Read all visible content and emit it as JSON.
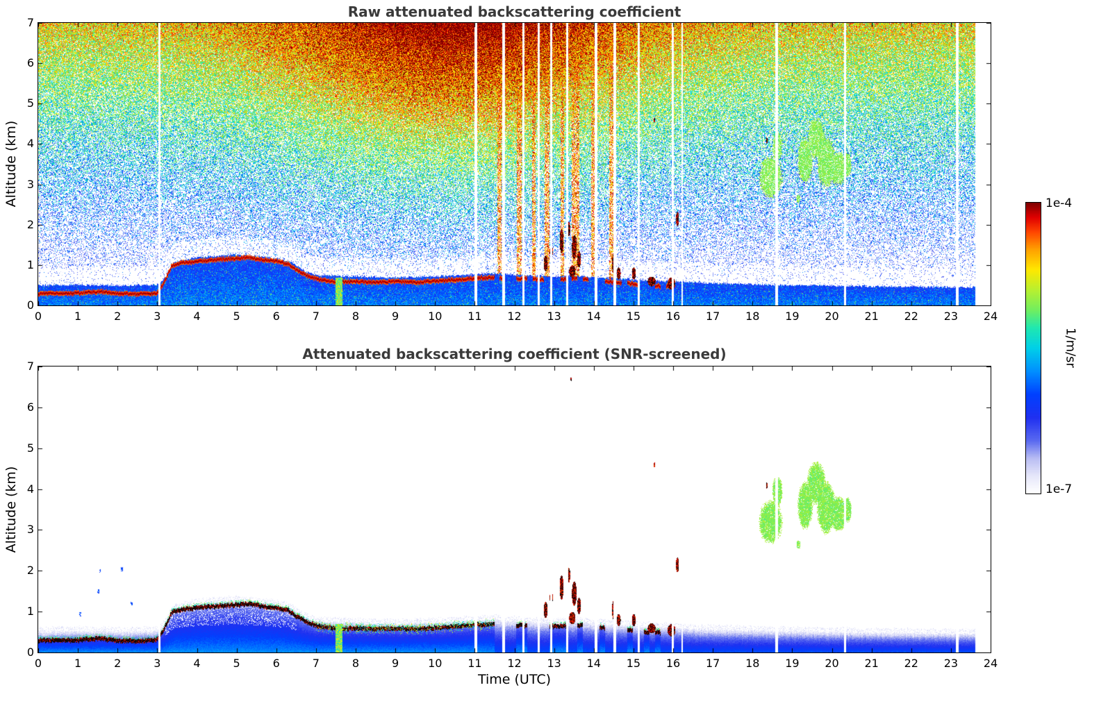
{
  "page": {
    "background": "#ffffff"
  },
  "colorbar": {
    "max_label": "1e-4",
    "min_label": "1e-7",
    "unit_label": "1/m/sr",
    "stops": [
      [
        0,
        "#ffffff"
      ],
      [
        0.06,
        "#e6e7fa"
      ],
      [
        0.12,
        "#b9bdf3"
      ],
      [
        0.18,
        "#5a6af0"
      ],
      [
        0.26,
        "#2030f0"
      ],
      [
        0.34,
        "#0040ff"
      ],
      [
        0.42,
        "#0090ff"
      ],
      [
        0.5,
        "#00d0e8"
      ],
      [
        0.57,
        "#20e8b0"
      ],
      [
        0.63,
        "#70ee60"
      ],
      [
        0.7,
        "#b8f030"
      ],
      [
        0.77,
        "#ffe800"
      ],
      [
        0.84,
        "#ffa000"
      ],
      [
        0.9,
        "#ff4500"
      ],
      [
        0.95,
        "#e00000"
      ],
      [
        1,
        "#7f0000"
      ]
    ]
  },
  "chart_data": [
    {
      "type": "heatmap",
      "panel": "top",
      "title": "Raw attenuated backscattering coefficient",
      "xlabel": "",
      "ylabel": "Altitude (km)",
      "xlim": [
        0,
        24
      ],
      "ylim": [
        0,
        7
      ],
      "xticks": [
        0,
        1,
        2,
        3,
        4,
        5,
        6,
        7,
        8,
        9,
        10,
        11,
        12,
        13,
        14,
        15,
        16,
        17,
        18,
        19,
        20,
        21,
        22,
        23,
        24
      ],
      "yticks": [
        0,
        1,
        2,
        3,
        4,
        5,
        6,
        7
      ],
      "grid": false,
      "legend": "colorbar-right",
      "colorscale": {
        "min_label": "1e-7",
        "max_label": "1e-4",
        "unit": "1/m/sr",
        "scale": "log"
      },
      "seed": 11,
      "noise": {
        "base": 0.14,
        "gain": 0.8,
        "day_peak_utc": 10.5,
        "day_sigma": 3.2,
        "day_base": 0.78,
        "day_amp": 0.38
      },
      "features": {
        "data_end_utc": 23.6,
        "line_solid_until_utc": 11.5,
        "line_intermittent_until_utc": 16,
        "boundary_layer_top_km": [
          [
            0,
            0.3
          ],
          [
            1,
            0.31
          ],
          [
            1.5,
            0.35
          ],
          [
            2,
            0.3
          ],
          [
            2.6,
            0.29
          ],
          [
            3.0,
            0.32
          ],
          [
            3.15,
            0.55
          ],
          [
            3.35,
            0.98
          ],
          [
            3.6,
            1.06
          ],
          [
            4.0,
            1.1
          ],
          [
            4.5,
            1.14
          ],
          [
            5.0,
            1.17
          ],
          [
            5.3,
            1.2
          ],
          [
            5.7,
            1.13
          ],
          [
            6.0,
            1.1
          ],
          [
            6.3,
            1.03
          ],
          [
            6.55,
            0.86
          ],
          [
            6.8,
            0.73
          ],
          [
            7.1,
            0.64
          ],
          [
            7.5,
            0.59
          ],
          [
            8.0,
            0.6
          ],
          [
            8.5,
            0.58
          ],
          [
            9.0,
            0.6
          ],
          [
            9.5,
            0.58
          ],
          [
            10.0,
            0.61
          ],
          [
            10.5,
            0.64
          ],
          [
            11.0,
            0.68
          ],
          [
            11.5,
            0.7
          ],
          [
            12.0,
            0.67
          ],
          [
            12.5,
            0.66
          ],
          [
            13.0,
            0.64
          ],
          [
            13.5,
            0.68
          ],
          [
            14.0,
            0.64
          ],
          [
            14.5,
            0.58
          ],
          [
            15.0,
            0.54
          ],
          [
            15.5,
            0.5
          ],
          [
            16.0,
            0.46
          ],
          [
            17.0,
            0.42
          ],
          [
            18.0,
            0.4
          ],
          [
            19.0,
            0.37
          ],
          [
            20.0,
            0.35
          ],
          [
            21.0,
            0.32
          ],
          [
            22.0,
            0.3
          ],
          [
            23.0,
            0.28
          ],
          [
            24.0,
            0.27
          ]
        ],
        "aerosol_layer_top_km": [
          [
            0,
            0.5
          ],
          [
            1,
            0.52
          ],
          [
            2,
            0.5
          ],
          [
            3,
            0.52
          ],
          [
            3.2,
            0.7
          ],
          [
            3.4,
            1.08
          ],
          [
            4,
            1.2
          ],
          [
            5,
            1.27
          ],
          [
            5.5,
            1.22
          ],
          [
            6,
            1.18
          ],
          [
            6.4,
            1.06
          ],
          [
            6.7,
            0.86
          ],
          [
            7,
            0.76
          ],
          [
            8,
            0.72
          ],
          [
            9,
            0.7
          ],
          [
            10,
            0.73
          ],
          [
            11,
            0.78
          ],
          [
            11.5,
            0.8
          ],
          [
            12,
            0.77
          ],
          [
            12.5,
            0.74
          ],
          [
            13,
            0.72
          ],
          [
            13.5,
            0.75
          ],
          [
            14,
            0.7
          ],
          [
            14.5,
            0.68
          ],
          [
            15,
            0.65
          ],
          [
            15.5,
            0.62
          ],
          [
            16,
            0.6
          ],
          [
            17,
            0.56
          ],
          [
            18,
            0.53
          ],
          [
            19,
            0.51
          ],
          [
            20,
            0.5
          ],
          [
            21,
            0.48
          ],
          [
            22,
            0.47
          ],
          [
            23,
            0.46
          ],
          [
            24,
            0.45
          ]
        ],
        "data_gaps_utc": [
          [
            3.05,
            0.03
          ],
          [
            11.02,
            0.03
          ],
          [
            11.72,
            0.03
          ],
          [
            12.22,
            0.03
          ],
          [
            12.6,
            0.025
          ],
          [
            12.92,
            0.03
          ],
          [
            13.32,
            0.03
          ],
          [
            14.05,
            0.03
          ],
          [
            14.52,
            0.03
          ],
          [
            15.12,
            0.03
          ],
          [
            15.98,
            0.03
          ],
          [
            16.22,
            0.025
          ],
          [
            18.6,
            0.03
          ],
          [
            20.32,
            0.03
          ],
          [
            23.15,
            0.03
          ]
        ],
        "rain_streaks_utc": [
          [
            11.62,
            0.05
          ],
          [
            12.12,
            0.06
          ],
          [
            12.48,
            0.05
          ],
          [
            12.82,
            0.06
          ],
          [
            13.2,
            0.05
          ],
          [
            13.53,
            0.09
          ],
          [
            13.98,
            0.05
          ],
          [
            14.44,
            0.06
          ]
        ],
        "precip_streak": {
          "t": 7.57,
          "half_width": 0.09,
          "top_km": 0.7
        },
        "cloud_blobs": [
          [
            18.45,
            3.2,
            0.28,
            0.5
          ],
          [
            18.62,
            3.95,
            0.12,
            0.35
          ],
          [
            19.32,
            3.6,
            0.18,
            0.55
          ],
          [
            19.6,
            4.15,
            0.22,
            0.5
          ],
          [
            19.85,
            3.55,
            0.22,
            0.6
          ],
          [
            20.15,
            3.4,
            0.22,
            0.4
          ],
          [
            20.38,
            3.5,
            0.1,
            0.3
          ],
          [
            19.15,
            2.65,
            0.05,
            0.1
          ]
        ],
        "feature_blobs": [
          [
            12.78,
            1.05,
            0.05,
            0.2
          ],
          [
            12.92,
            1.35,
            0.04,
            0.15
          ],
          [
            13.18,
            1.6,
            0.05,
            0.3
          ],
          [
            13.36,
            1.9,
            0.04,
            0.18
          ],
          [
            13.5,
            1.45,
            0.06,
            0.3
          ],
          [
            13.62,
            1.15,
            0.05,
            0.2
          ],
          [
            13.45,
            0.85,
            0.08,
            0.15
          ],
          [
            14.5,
            1.05,
            0.05,
            0.25
          ],
          [
            14.62,
            0.8,
            0.05,
            0.15
          ],
          [
            15.0,
            0.8,
            0.05,
            0.15
          ],
          [
            15.45,
            0.6,
            0.1,
            0.12
          ],
          [
            15.95,
            0.55,
            0.1,
            0.15
          ],
          [
            16.1,
            2.15,
            0.04,
            0.18
          ],
          [
            15.52,
            4.6,
            0.02,
            0.06
          ],
          [
            13.42,
            6.7,
            0.015,
            0.05
          ],
          [
            18.35,
            4.1,
            0.02,
            0.08
          ]
        ],
        "bottom_specks": [
          [
            1.05,
            0.95
          ],
          [
            1.5,
            1.5
          ],
          [
            1.55,
            2.0
          ],
          [
            2.1,
            2.05
          ],
          [
            2.35,
            1.2
          ],
          [
            3.05,
            1.4
          ]
        ]
      }
    },
    {
      "type": "heatmap",
      "panel": "bottom",
      "title": "Attenuated backscattering coefficient (SNR-screened)",
      "xlabel": "Time (UTC)",
      "ylabel": "Altitude (km)",
      "xlim": [
        0,
        24
      ],
      "ylim": [
        0,
        7
      ],
      "xticks": [
        0,
        1,
        2,
        3,
        4,
        5,
        6,
        7,
        8,
        9,
        10,
        11,
        12,
        13,
        14,
        15,
        16,
        17,
        18,
        19,
        20,
        21,
        22,
        23,
        24
      ],
      "yticks": [
        0,
        1,
        2,
        3,
        4,
        5,
        6,
        7
      ],
      "grid": false,
      "legend": "colorbar-right",
      "colorscale": {
        "min_label": "1e-7",
        "max_label": "1e-4",
        "unit": "1/m/sr",
        "scale": "log"
      },
      "seed": 23,
      "features_ref": 0
    }
  ]
}
